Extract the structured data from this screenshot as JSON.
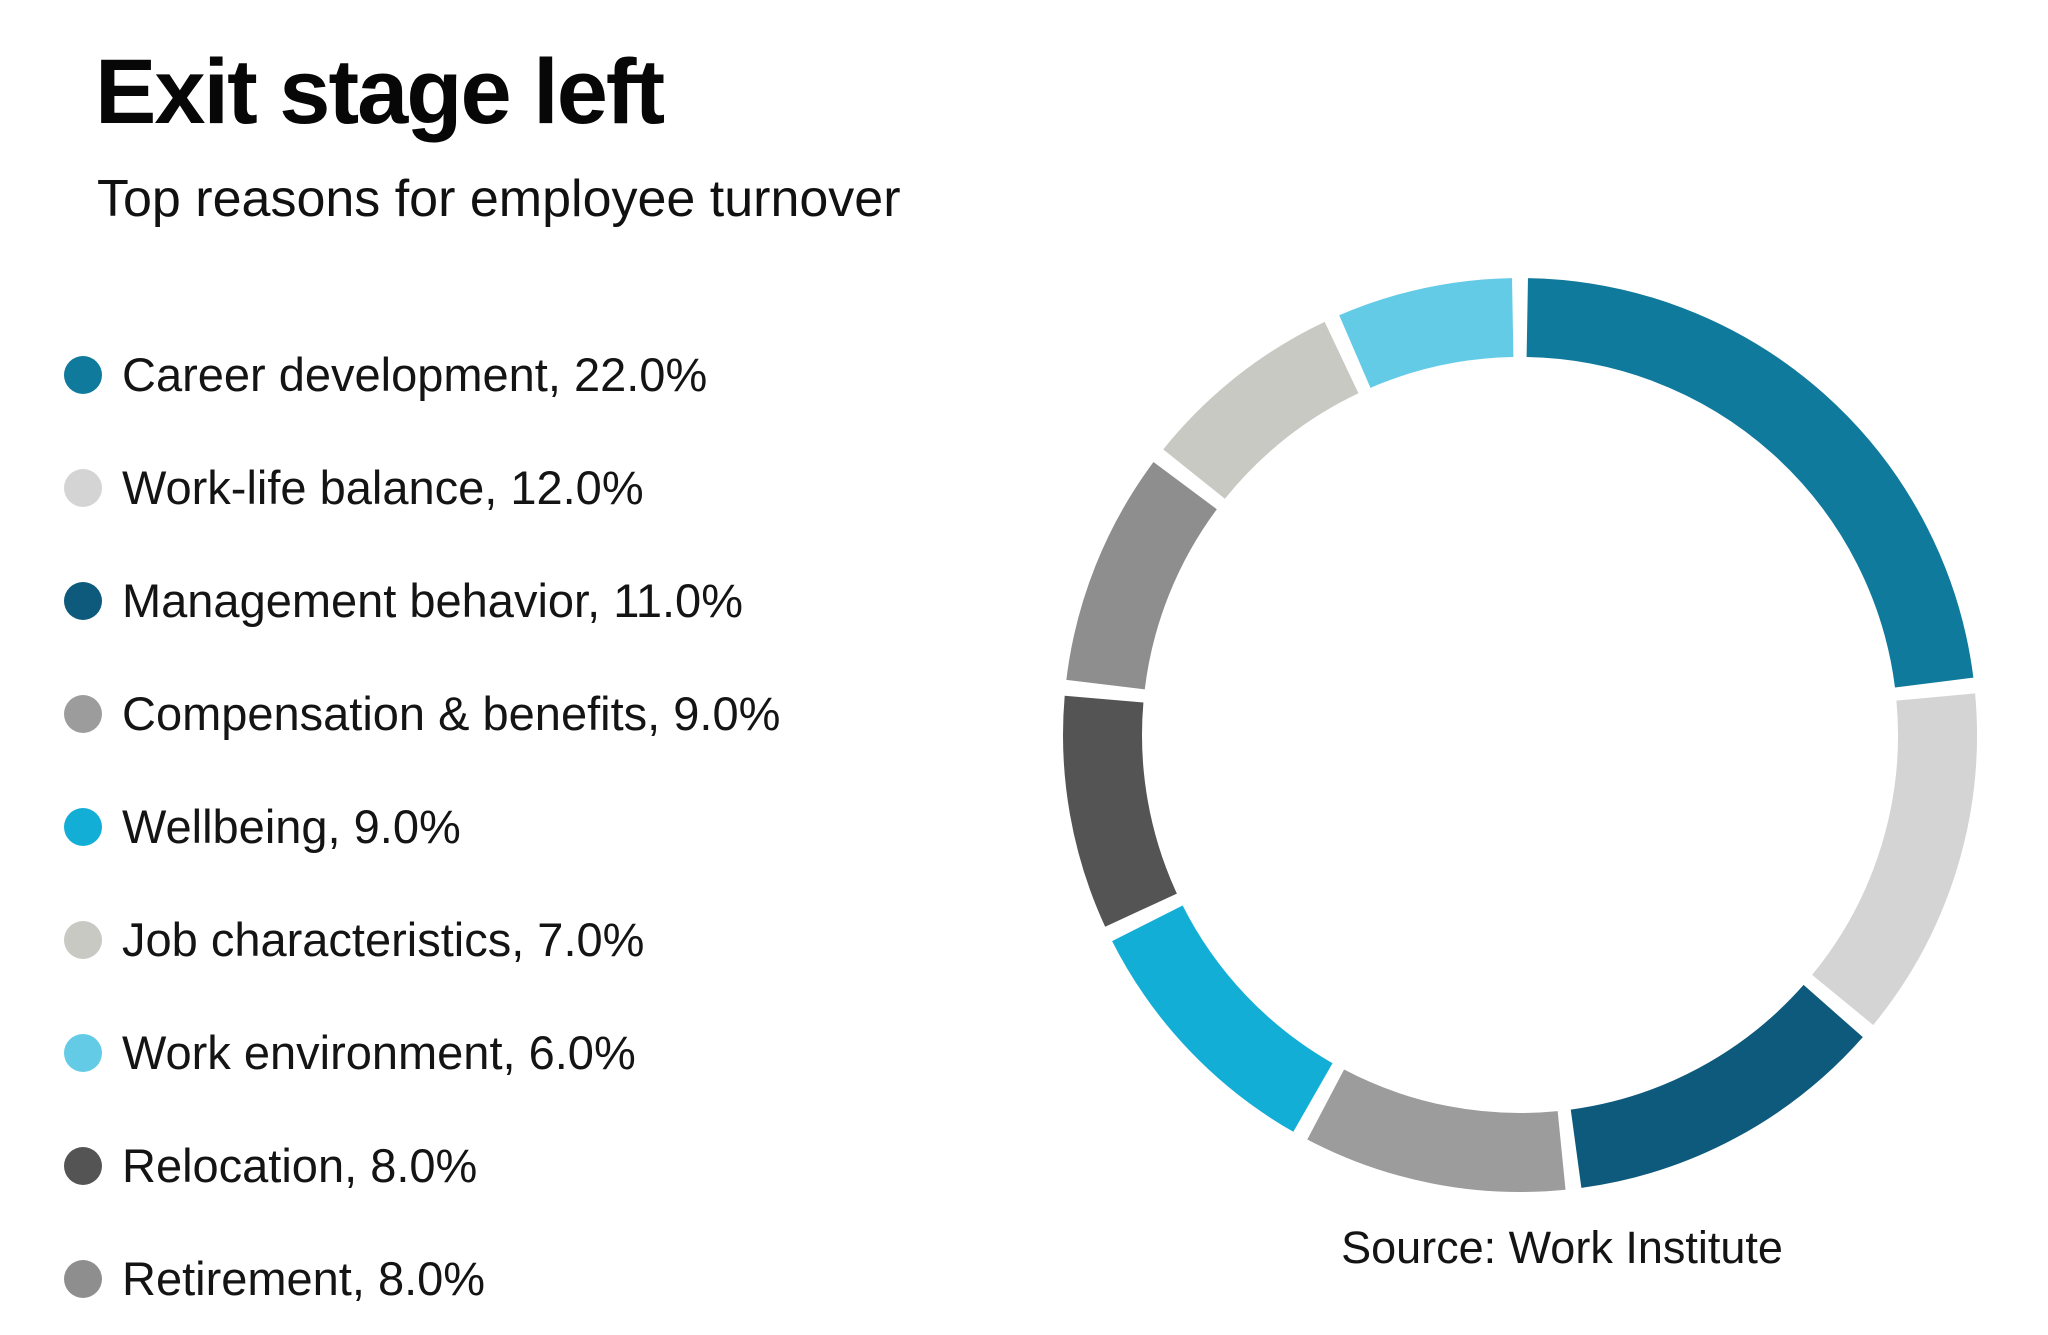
{
  "header": {
    "title": "Exit stage left",
    "subtitle": "Top reasons for employee turnover"
  },
  "source": "Source: Work Institute",
  "chart_data": {
    "type": "pie",
    "variant": "donut",
    "title": "Exit stage left",
    "subtitle": "Top reasons for employee turnover",
    "source": "Source: Work Institute",
    "legend_position": "left",
    "start_angle_deg": 0,
    "direction": "clockwise",
    "gap_deg": 2.0,
    "segments": [
      {
        "label": "Career development",
        "value": 22.0,
        "color": "#0F7A9C",
        "legend_label": "Career development, 22.0%"
      },
      {
        "label": "Work-life balance",
        "value": 12.0,
        "color": "#D4D4D4",
        "legend_label": "Work-life balance, 12.0%"
      },
      {
        "label": "Management behavior",
        "value": 11.0,
        "color": "#0D5A7C",
        "legend_label": "Management behavior, 11.0%"
      },
      {
        "label": "Compensation & benefits",
        "value": 9.0,
        "color": "#9C9C9C",
        "legend_label": "Compensation & benefits, 9.0%"
      },
      {
        "label": "Wellbeing",
        "value": 9.0,
        "color": "#12AED6",
        "legend_label": "Wellbeing, 9.0%"
      },
      {
        "label": "Job characteristics",
        "value": 7.0,
        "color": "#C8C9C2",
        "legend_label": "Job characteristics, 7.0%"
      },
      {
        "label": "Work environment",
        "value": 6.0,
        "color": "#63CBE6",
        "legend_label": "Work environment, 6.0%"
      },
      {
        "label": "Relocation",
        "value": 8.0,
        "color": "#545454",
        "legend_label": "Relocation, 8.0%"
      },
      {
        "label": "Retirement",
        "value": 8.0,
        "color": "#8E8E8E",
        "legend_label": "Retirement, 8.0%"
      }
    ],
    "ring_order": [
      "Career development",
      "Work-life balance",
      "Management behavior",
      "Compensation & benefits",
      "Wellbeing",
      "Relocation",
      "Retirement",
      "Job characteristics",
      "Work environment"
    ]
  }
}
